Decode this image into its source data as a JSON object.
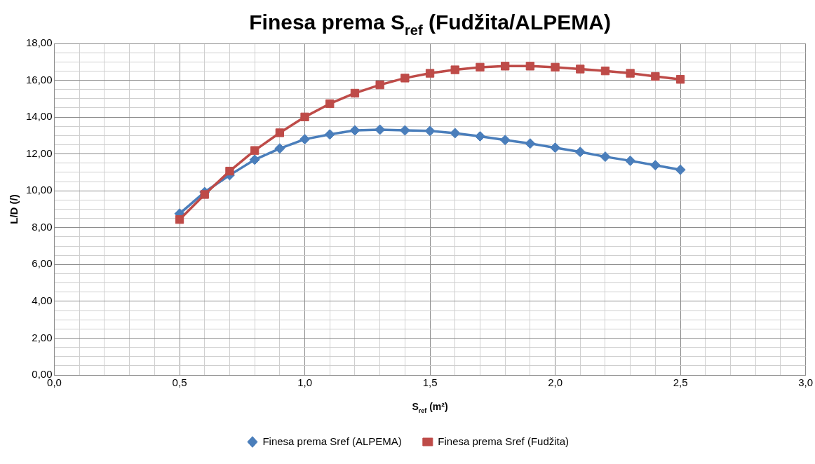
{
  "chart_data": {
    "type": "line",
    "title": "Finesa prema S$_{ref}$ (Fudžita/ALPEMA)",
    "xlabel": "S$_{ref}$ (m²)",
    "ylabel": "L/D (/)",
    "x": [
      0.5,
      0.6,
      0.7,
      0.8,
      0.9,
      1.0,
      1.1,
      1.2,
      1.3,
      1.4,
      1.5,
      1.6,
      1.7,
      1.8,
      1.9,
      2.0,
      2.1,
      2.2,
      2.3,
      2.4,
      2.5
    ],
    "series": [
      {
        "name": "Finesa prema Sref (ALPEMA)",
        "color": "#4a7ebb",
        "marker": "diamond",
        "values": [
          8.76,
          9.93,
          10.85,
          11.69,
          12.3,
          12.8,
          13.06,
          13.28,
          13.32,
          13.28,
          13.25,
          13.13,
          12.96,
          12.76,
          12.57,
          12.34,
          12.11,
          11.85,
          11.63,
          11.39,
          11.14
        ]
      },
      {
        "name": "Finesa prema Sref (Fudžita)",
        "color": "#be4b48",
        "marker": "square",
        "values": [
          8.44,
          9.8,
          11.07,
          12.19,
          13.15,
          14.01,
          14.73,
          15.3,
          15.75,
          16.12,
          16.38,
          16.57,
          16.71,
          16.77,
          16.77,
          16.71,
          16.61,
          16.51,
          16.38,
          16.21,
          16.05
        ]
      }
    ],
    "xlim": [
      0,
      3
    ],
    "xticks": [
      {
        "value": 0,
        "label": "0,0"
      },
      {
        "value": 0.1,
        "label": null
      },
      {
        "value": 0.2,
        "label": null
      },
      {
        "value": 0.3,
        "label": null
      },
      {
        "value": 0.4,
        "label": null
      },
      {
        "value": 0.5,
        "label": "0,5"
      },
      {
        "value": 0.6,
        "label": null
      },
      {
        "value": 0.7,
        "label": null
      },
      {
        "value": 0.8,
        "label": null
      },
      {
        "value": 0.9,
        "label": null
      },
      {
        "value": 1,
        "label": "1,0"
      },
      {
        "value": 1.1,
        "label": null
      },
      {
        "value": 1.2,
        "label": null
      },
      {
        "value": 1.3,
        "label": null
      },
      {
        "value": 1.4,
        "label": null
      },
      {
        "value": 1.5,
        "label": "1,5"
      },
      {
        "value": 1.6,
        "label": null
      },
      {
        "value": 1.7,
        "label": null
      },
      {
        "value": 1.8,
        "label": null
      },
      {
        "value": 1.9,
        "label": null
      },
      {
        "value": 2,
        "label": "2,0"
      },
      {
        "value": 2.1,
        "label": null
      },
      {
        "value": 2.2,
        "label": null
      },
      {
        "value": 2.3,
        "label": null
      },
      {
        "value": 2.4,
        "label": null
      },
      {
        "value": 2.5,
        "label": "2,5"
      },
      {
        "value": 2.6,
        "label": null
      },
      {
        "value": 2.7,
        "label": null
      },
      {
        "value": 2.8,
        "label": null
      },
      {
        "value": 2.9,
        "label": null
      },
      {
        "value": 3,
        "label": "3,0"
      }
    ],
    "ylim": [
      0,
      18
    ],
    "yticks": [
      {
        "value": 0,
        "label": "0,00"
      },
      {
        "value": 0.5,
        "label": null
      },
      {
        "value": 1,
        "label": null
      },
      {
        "value": 1.5,
        "label": null
      },
      {
        "value": 2,
        "label": "2,00"
      },
      {
        "value": 2.5,
        "label": null
      },
      {
        "value": 3,
        "label": null
      },
      {
        "value": 3.5,
        "label": null
      },
      {
        "value": 4,
        "label": "4,00"
      },
      {
        "value": 4.5,
        "label": null
      },
      {
        "value": 5,
        "label": null
      },
      {
        "value": 5.5,
        "label": null
      },
      {
        "value": 6,
        "label": "6,00"
      },
      {
        "value": 6.5,
        "label": null
      },
      {
        "value": 7,
        "label": null
      },
      {
        "value": 7.5,
        "label": null
      },
      {
        "value": 8,
        "label": "8,00"
      },
      {
        "value": 8.5,
        "label": null
      },
      {
        "value": 9,
        "label": null
      },
      {
        "value": 9.5,
        "label": null
      },
      {
        "value": 10,
        "label": "10,00"
      },
      {
        "value": 10.5,
        "label": null
      },
      {
        "value": 11,
        "label": null
      },
      {
        "value": 11.5,
        "label": null
      },
      {
        "value": 12,
        "label": "12,00"
      },
      {
        "value": 12.5,
        "label": null
      },
      {
        "value": 13,
        "label": null
      },
      {
        "value": 13.5,
        "label": null
      },
      {
        "value": 14,
        "label": "14,00"
      },
      {
        "value": 14.5,
        "label": null
      },
      {
        "value": 15,
        "label": null
      },
      {
        "value": 15.5,
        "label": null
      },
      {
        "value": 16,
        "label": "16,00"
      },
      {
        "value": 16.5,
        "label": null
      },
      {
        "value": 17,
        "label": null
      },
      {
        "value": 17.5,
        "label": null
      },
      {
        "value": 18,
        "label": "18,00"
      }
    ],
    "grid": true,
    "legend": "bottom",
    "line_style": "solid"
  }
}
